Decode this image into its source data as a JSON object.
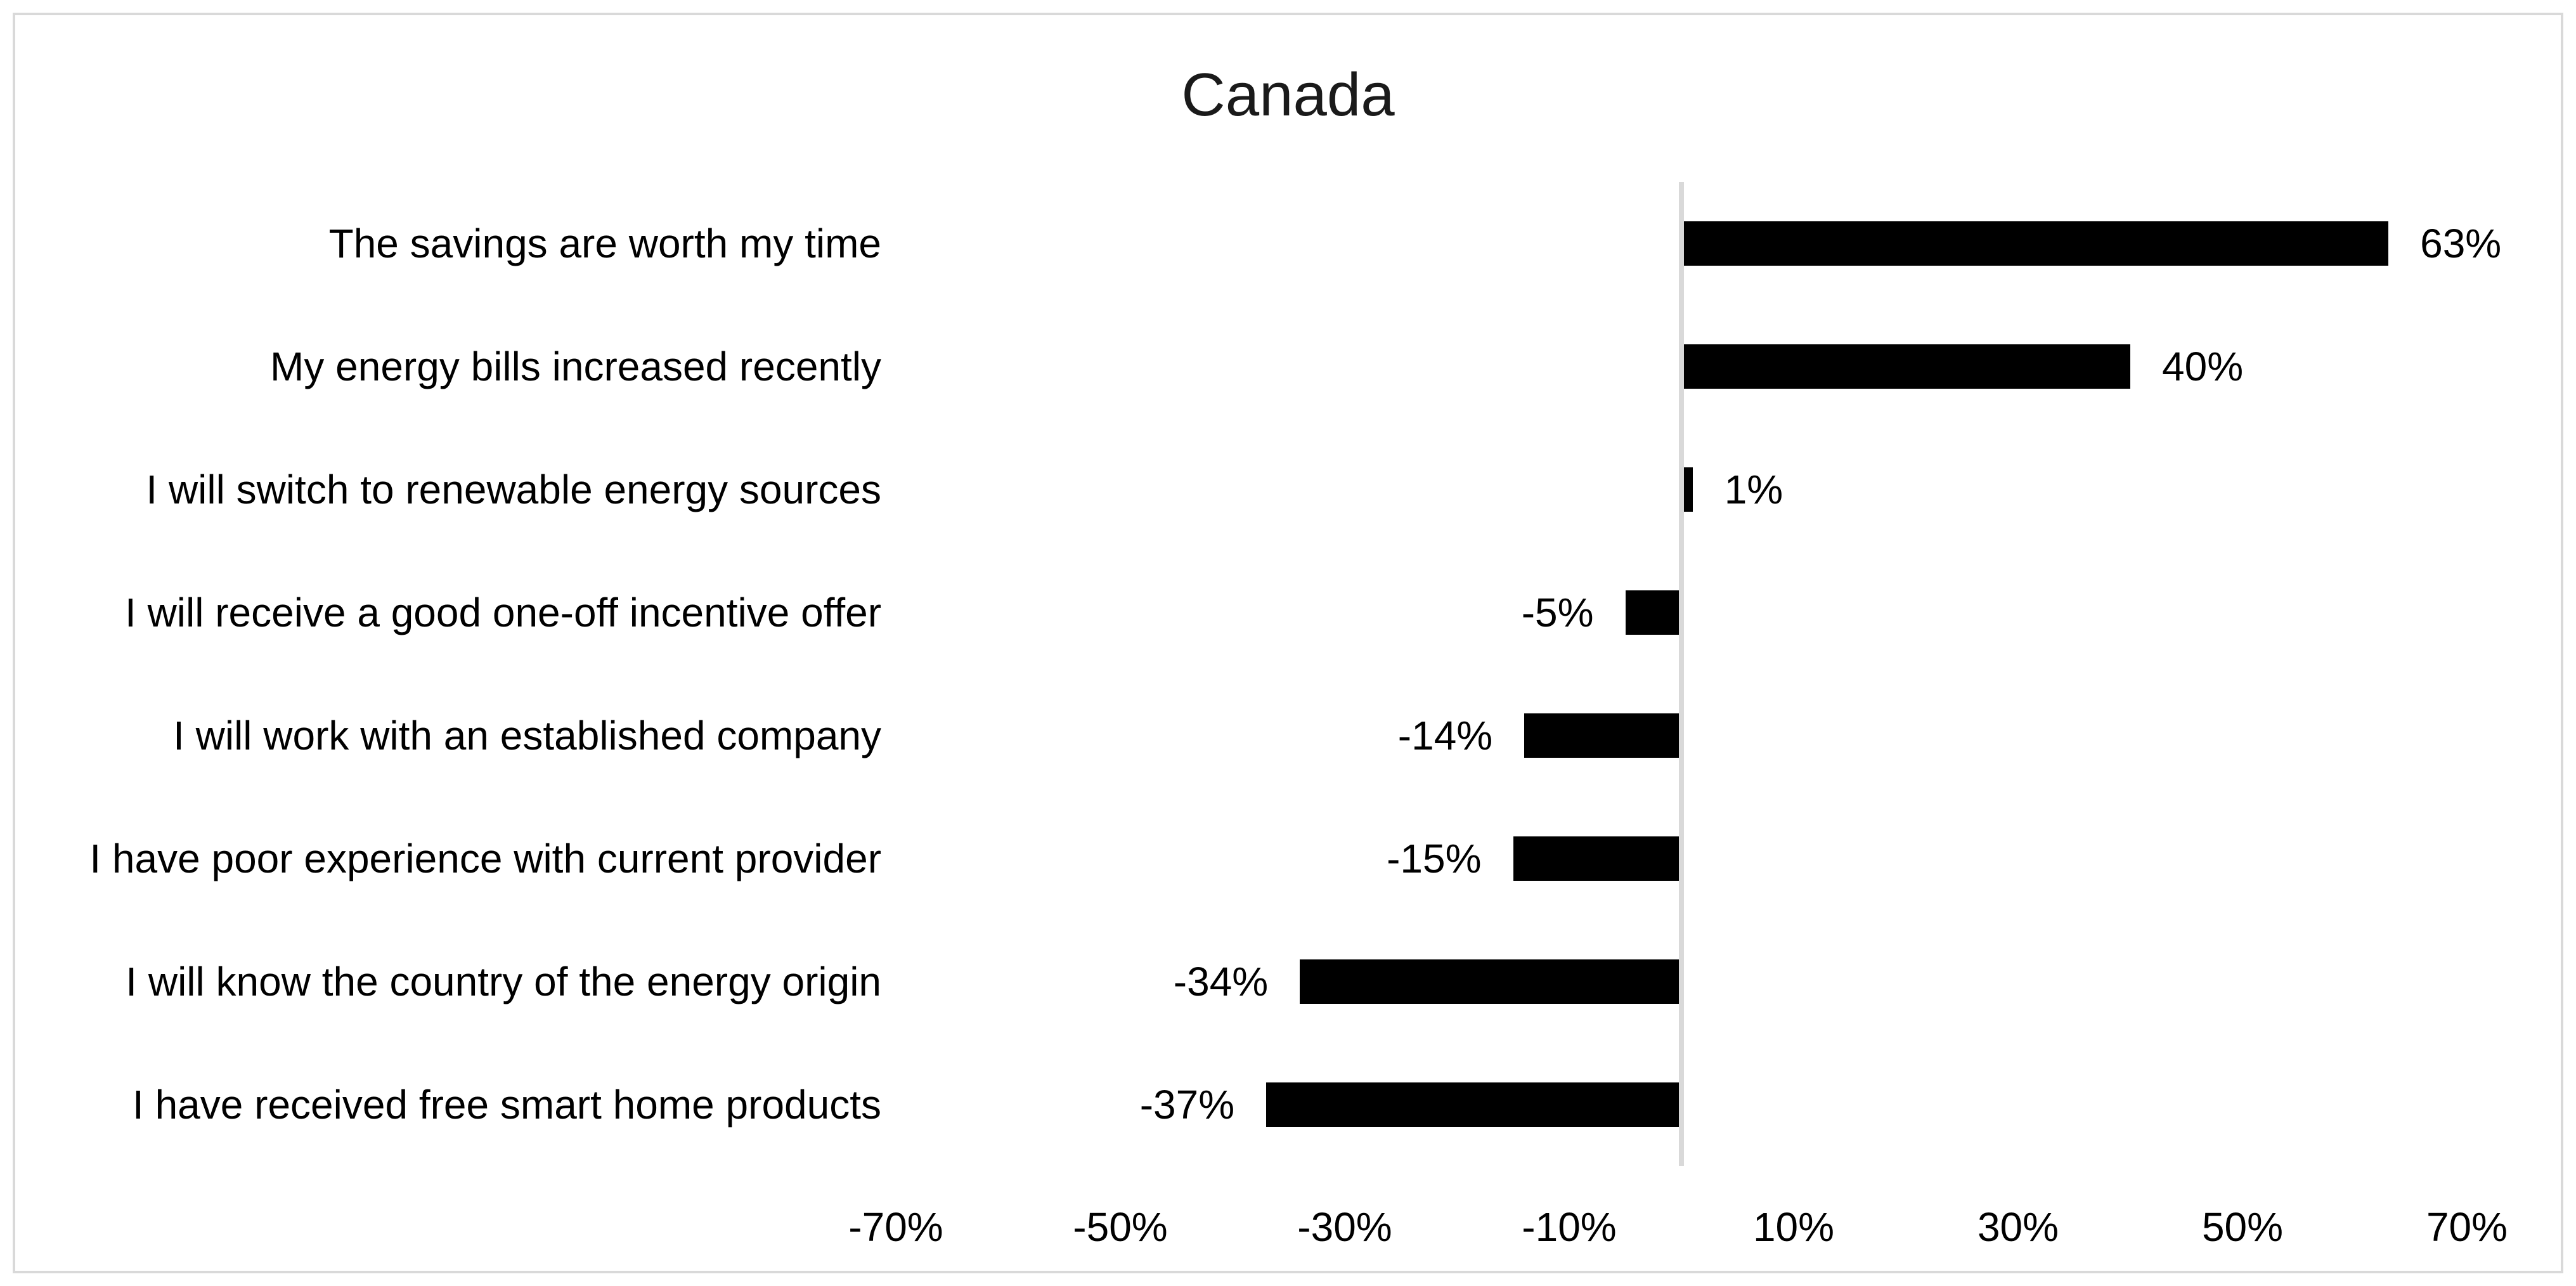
{
  "chart_data": {
    "type": "bar",
    "orientation": "horizontal",
    "title": "Canada",
    "categories": [
      "The savings are worth my time",
      "My energy bills increased recently",
      "I will switch to renewable energy sources",
      "I will receive a good one-off incentive offer",
      "I will work with an established company",
      "I have poor experience with current provider",
      "I will know the country of the energy origin",
      "I have received free smart home products"
    ],
    "values": [
      63,
      40,
      1,
      -5,
      -14,
      -15,
      -34,
      -37
    ],
    "value_labels": [
      "63%",
      "40%",
      "1%",
      "-5%",
      "-14%",
      "-15%",
      "-34%",
      "-37%"
    ],
    "x_tick_labels": [
      "-70%",
      "-50%",
      "-30%",
      "-10%",
      "10%",
      "30%",
      "50%",
      "70%"
    ],
    "x_tick_values": [
      -70,
      -50,
      -30,
      -10,
      10,
      30,
      50,
      70
    ],
    "xlim": [
      -70,
      70
    ],
    "bar_color": "#000000",
    "axis_line_color": "#d9d9d9",
    "frame_color": "#d9d9d9",
    "grid": false,
    "legend": false
  }
}
